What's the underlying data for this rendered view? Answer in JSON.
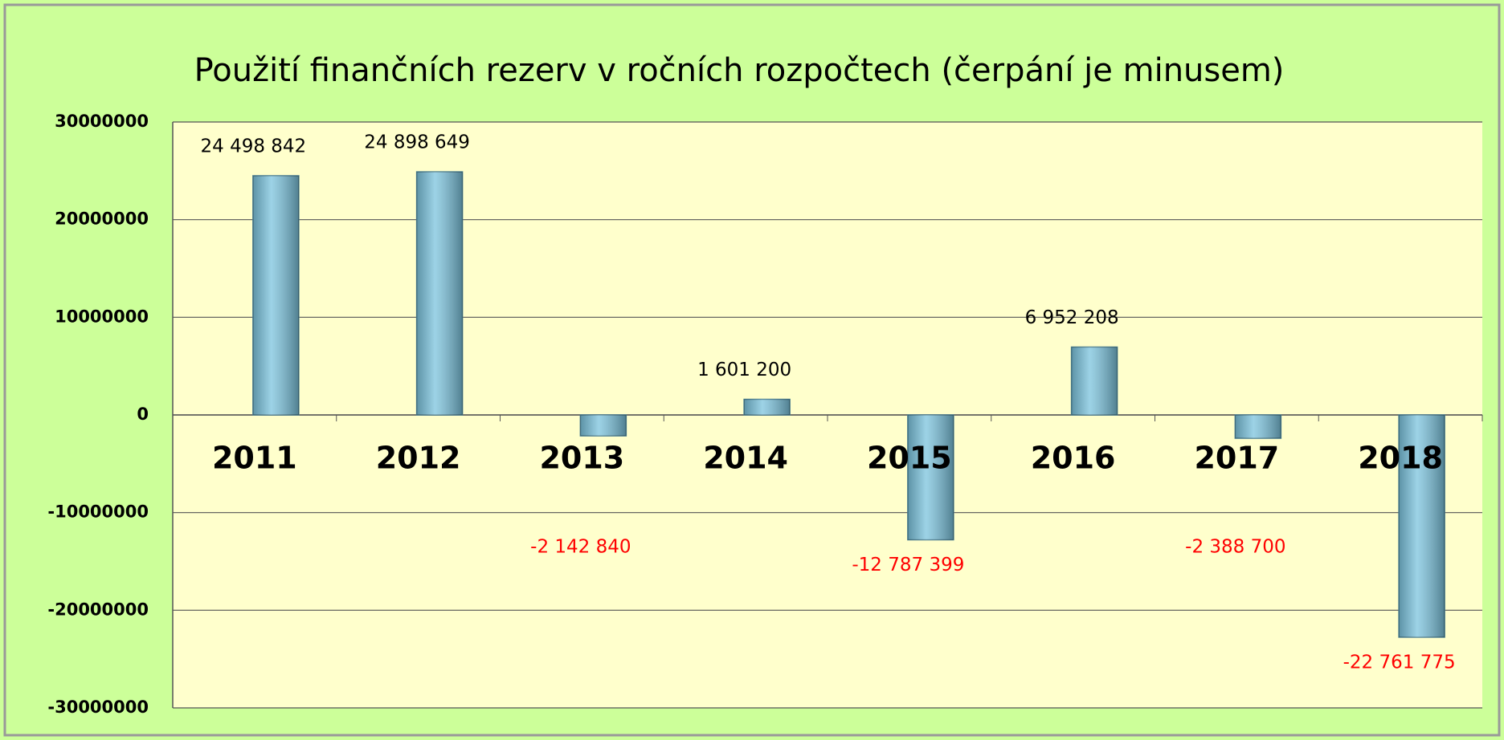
{
  "chart_data": {
    "type": "bar",
    "title": "Použití finančních rezerv v ročních rozpočtech (čerpání je minusem)",
    "categories": [
      "2011",
      "2012",
      "2013",
      "2014",
      "2015",
      "2016",
      "2017",
      "2018"
    ],
    "values": [
      24498842,
      24898649,
      -2142840,
      1601200,
      -12787399,
      6952208,
      -2388700,
      -22761775
    ],
    "value_labels": [
      "24 498 842",
      "24 898 649",
      "-2 142 840",
      "1 601 200",
      "-12 787 399",
      "6 952 208",
      "-2 388 700",
      "-22 761 775"
    ],
    "color": "#7cc4de",
    "negative_label_color": "#ff0000",
    "ylim": [
      -30000000,
      30000000
    ],
    "yticks": [
      -30000000,
      -20000000,
      -10000000,
      0,
      10000000,
      20000000,
      30000000
    ],
    "grid": true
  }
}
